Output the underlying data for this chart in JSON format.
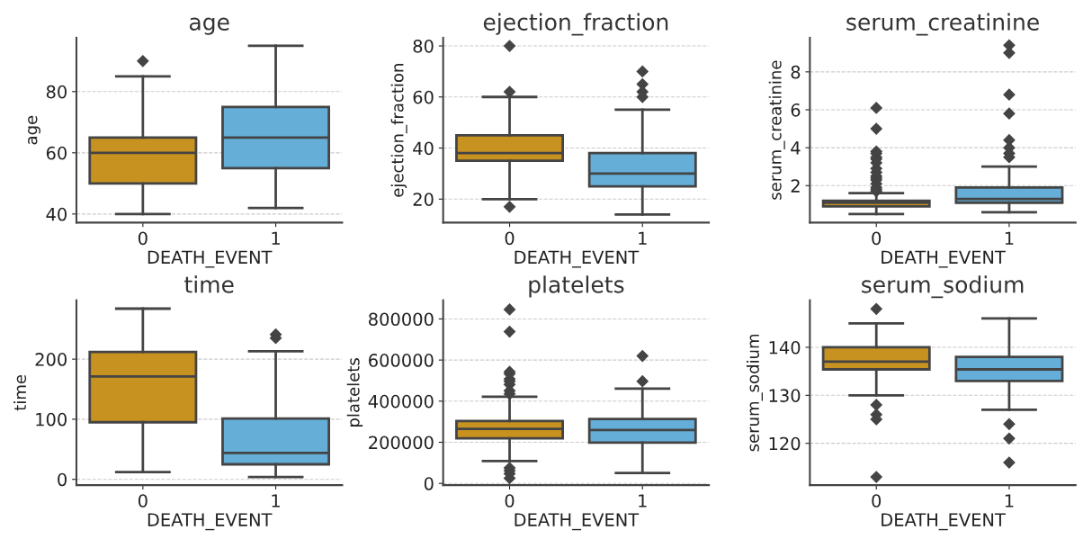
{
  "chart_data": [
    {
      "type": "box",
      "title": "age",
      "xlabel": "DEATH_EVENT",
      "ylabel": "age",
      "categories": [
        "0",
        "1"
      ],
      "colors": [
        "#c89220",
        "#64aed8"
      ],
      "grid": "y",
      "ylim": [
        37.2,
        97.6
      ],
      "yticks": [
        40,
        60,
        80
      ],
      "boxes": [
        {
          "low": 40,
          "q1": 50,
          "median": 60,
          "q3": 65,
          "high": 85,
          "outliers": [
            90
          ]
        },
        {
          "low": 42,
          "q1": 55,
          "median": 65,
          "q3": 75,
          "high": 95
        }
      ]
    },
    {
      "type": "box",
      "title": "ejection_fraction",
      "xlabel": "DEATH_EVENT",
      "ylabel": "ejection_fraction",
      "categories": [
        "0",
        "1"
      ],
      "colors": [
        "#c89220",
        "#64aed8"
      ],
      "grid": "y",
      "ylim": [
        10.8,
        83.2
      ],
      "yticks": [
        20,
        40,
        60,
        80
      ],
      "boxes": [
        {
          "low": 20,
          "q1": 35,
          "median": 38,
          "q3": 45,
          "high": 60,
          "outliers": [
            80,
            62,
            17
          ]
        },
        {
          "low": 14,
          "q1": 25,
          "median": 30,
          "q3": 38,
          "high": 55,
          "outliers": [
            70,
            65,
            62,
            60
          ]
        }
      ]
    },
    {
      "type": "box",
      "title": "serum_creatinine",
      "xlabel": "DEATH_EVENT",
      "ylabel": "serum_creatinine",
      "categories": [
        "0",
        "1"
      ],
      "colors": [
        "#c89220",
        "#64aed8"
      ],
      "grid": "y",
      "ylim": [
        0.05,
        9.8
      ],
      "yticks": [
        2,
        4,
        6,
        8
      ],
      "boxes": [
        {
          "low": 0.5,
          "q1": 0.9,
          "median": 1.1,
          "q3": 1.2,
          "high": 1.6,
          "outliers": [
            1.7,
            1.8,
            1.9,
            2.1,
            2.3,
            2.4,
            2.5,
            2.7,
            2.9,
            3.2,
            3.4,
            3.5,
            3.7,
            3.8,
            5.0,
            6.1
          ]
        },
        {
          "low": 0.6,
          "q1": 1.1,
          "median": 1.3,
          "q3": 1.9,
          "high": 3.0,
          "outliers": [
            3.5,
            3.7,
            4.0,
            4.4,
            5.8,
            6.8,
            9.0,
            9.4
          ]
        }
      ]
    },
    {
      "type": "box",
      "title": "time",
      "xlabel": "DEATH_EVENT",
      "ylabel": "time",
      "categories": [
        "0",
        "1"
      ],
      "colors": [
        "#c89220",
        "#64aed8"
      ],
      "grid": "y",
      "ylim": [
        -9.6,
        298
      ],
      "yticks": [
        0,
        100,
        200
      ],
      "boxes": [
        {
          "low": 12,
          "q1": 95,
          "median": 171,
          "q3": 212,
          "high": 284
        },
        {
          "low": 4,
          "q1": 25,
          "median": 44,
          "q3": 101,
          "high": 213,
          "outliers": [
            235,
            241
          ]
        }
      ]
    },
    {
      "type": "box",
      "title": "platelets",
      "xlabel": "DEATH_EVENT",
      "ylabel": "platelets",
      "categories": [
        "0",
        "1"
      ],
      "colors": [
        "#c89220",
        "#64aed8"
      ],
      "grid": "y",
      "ylim": [
        -8400,
        891000
      ],
      "yticks": [
        0,
        200000,
        400000,
        600000,
        800000
      ],
      "boxes": [
        {
          "low": 109000,
          "q1": 219000,
          "median": 265000,
          "q3": 303000,
          "high": 422000,
          "outliers": [
            846000,
            738000,
            543000,
            533000,
            507000,
            497000,
            481000,
            451000,
            435000,
            75000,
            62000,
            47000,
            25000
          ]
        },
        {
          "low": 51000,
          "q1": 198000,
          "median": 260000,
          "q3": 313000,
          "high": 461000,
          "outliers": [
            620000,
            497000
          ]
        }
      ]
    },
    {
      "type": "box",
      "title": "serum_sodium",
      "xlabel": "DEATH_EVENT",
      "ylabel": "serum_sodium",
      "categories": [
        "0",
        "1"
      ],
      "colors": [
        "#c89220",
        "#64aed8"
      ],
      "grid": "y",
      "ylim": [
        111.3,
        149.8
      ],
      "yticks": [
        120,
        130,
        140
      ],
      "boxes": [
        {
          "low": 130,
          "q1": 135.4,
          "median": 137,
          "q3": 140,
          "high": 145,
          "outliers": [
            148,
            128,
            126,
            125,
            113
          ]
        },
        {
          "low": 127,
          "q1": 133,
          "median": 135.4,
          "q3": 138,
          "high": 146,
          "outliers": [
            124,
            121,
            116
          ]
        }
      ]
    }
  ]
}
